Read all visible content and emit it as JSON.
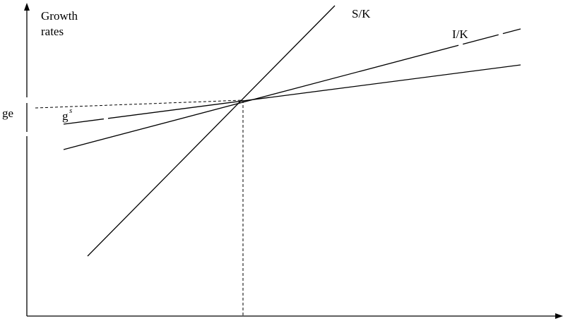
{
  "diagram": {
    "y_axis_label_line1": "Growth",
    "y_axis_label_line2": "rates",
    "equilibrium_label": "ge",
    "curve_labels": {
      "savings": "S/K",
      "investment": "I/K",
      "natural_growth_base": "g",
      "natural_growth_superscript": "s"
    }
  },
  "colors": {
    "lines": "#000000",
    "background": "#ffffff"
  }
}
